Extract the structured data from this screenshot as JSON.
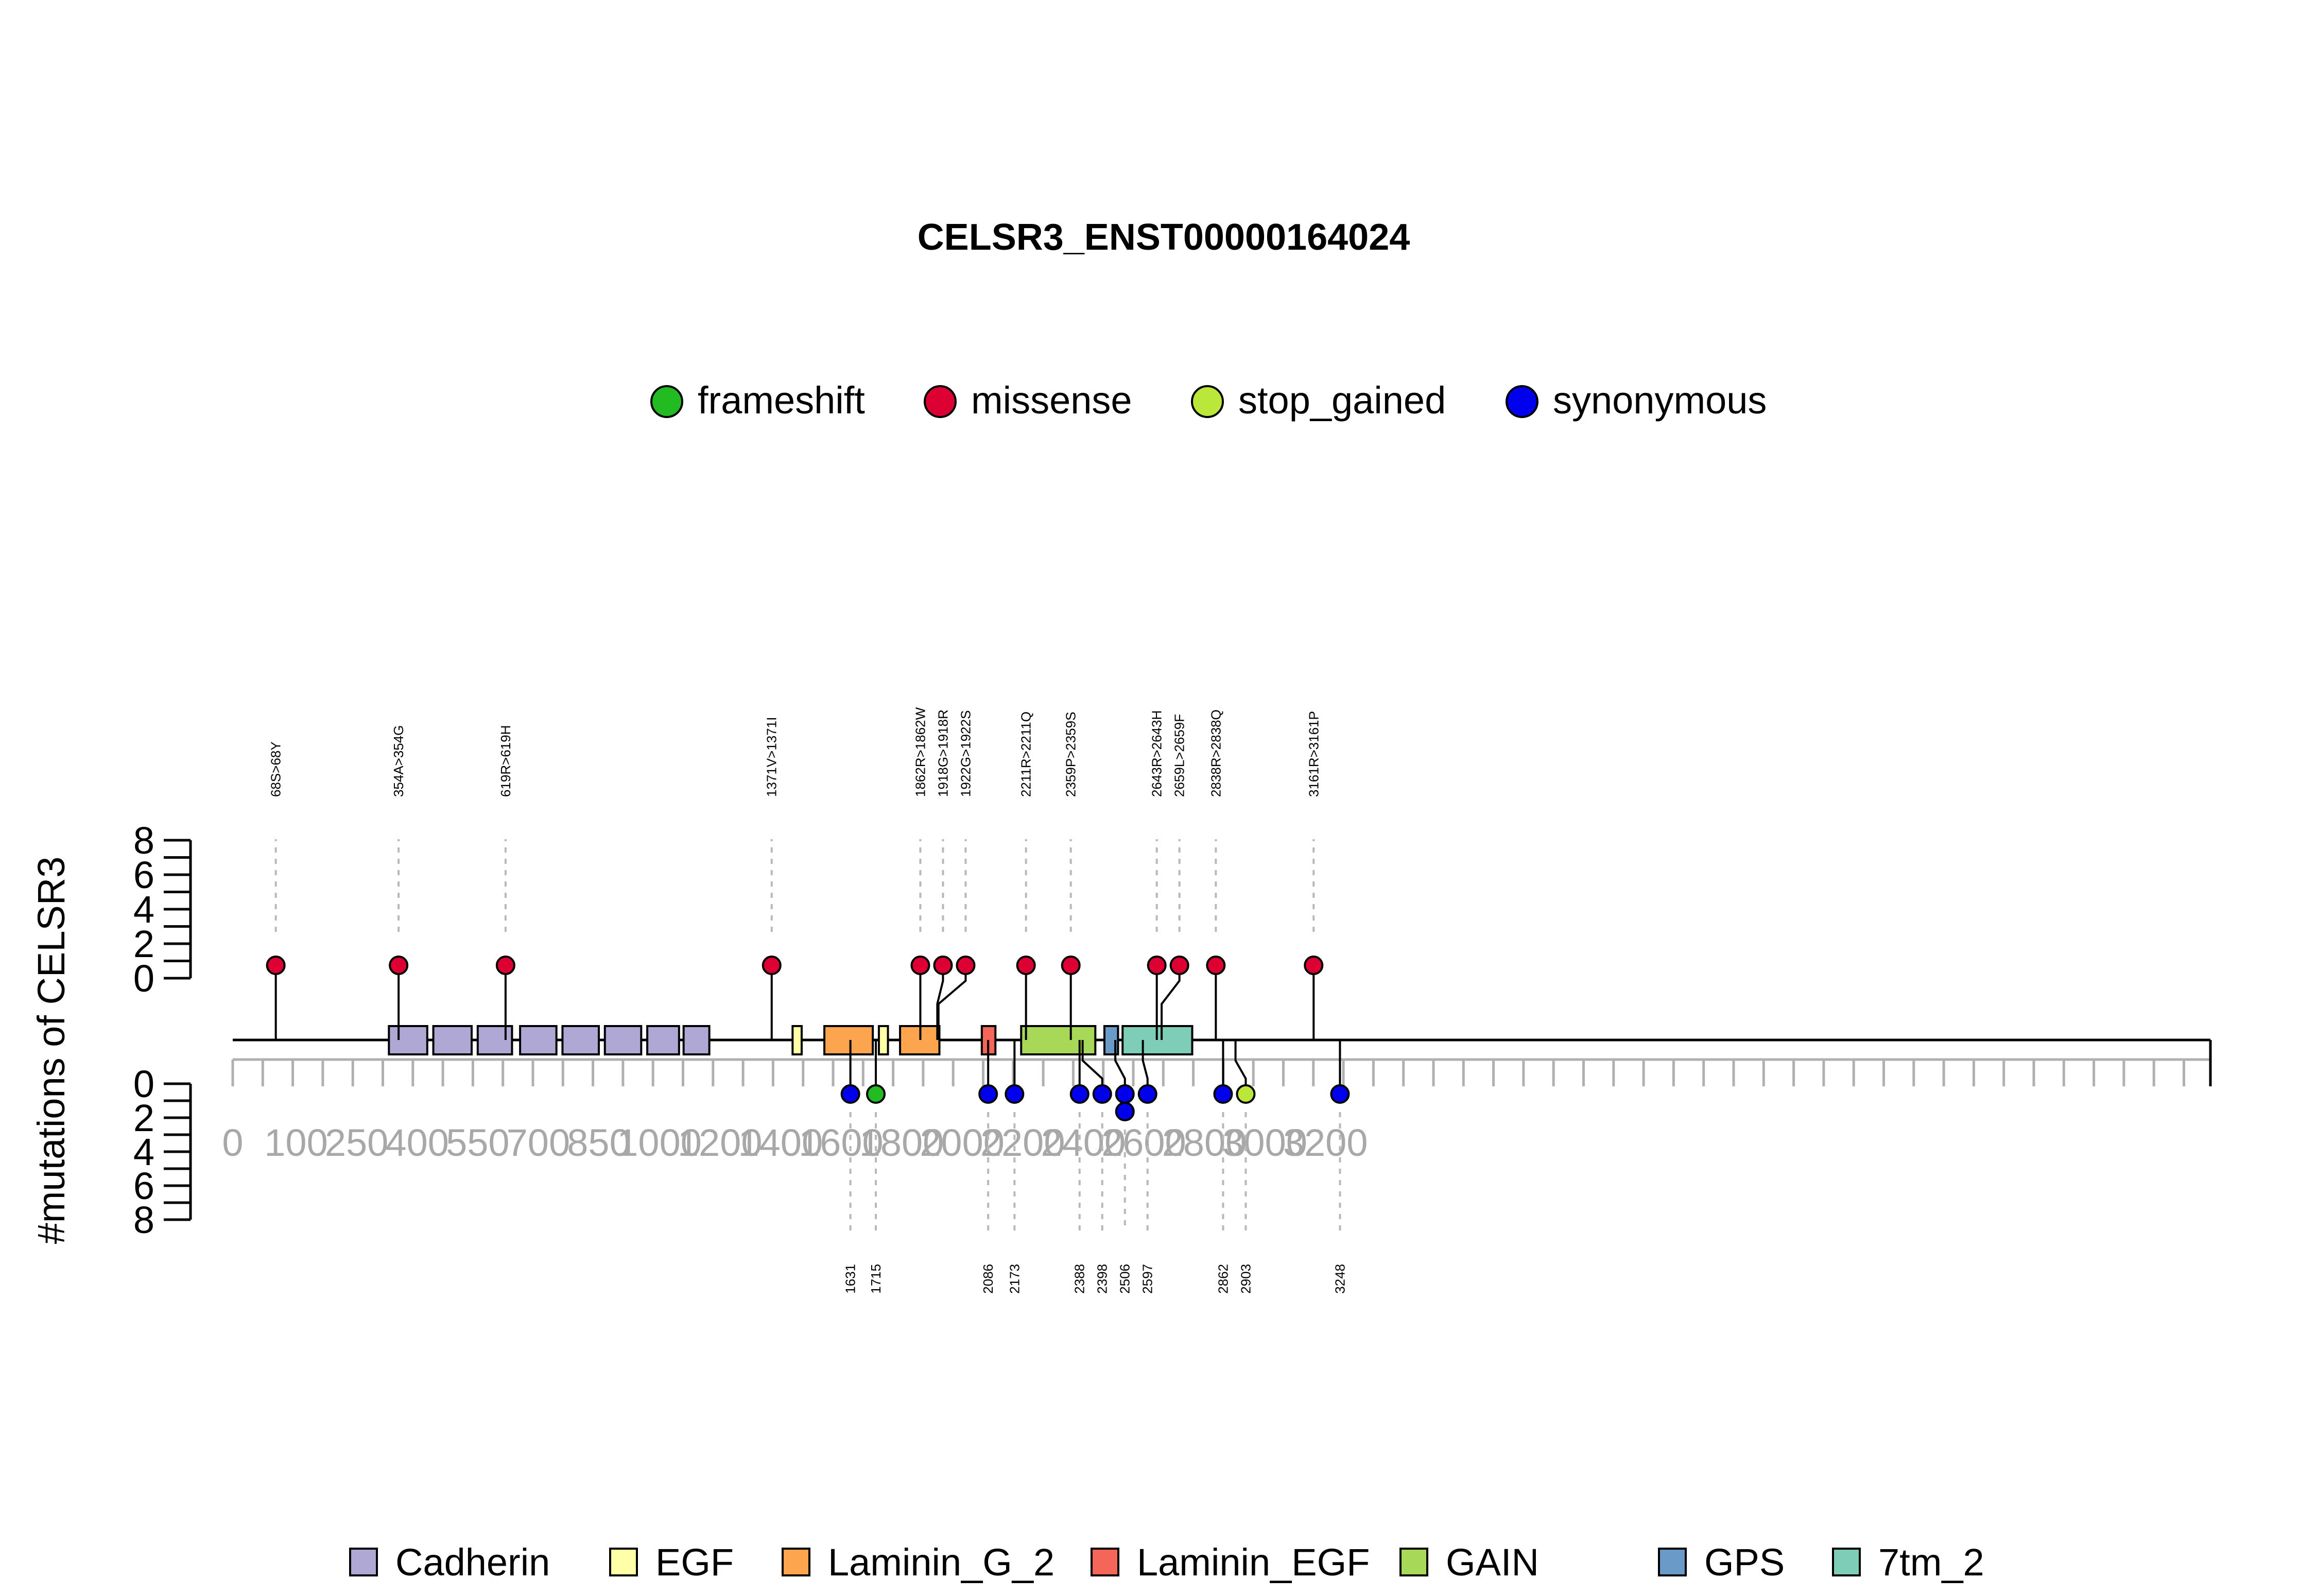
{
  "chart_data": {
    "type": "lollipop",
    "title": "CELSR3_ENST00000164024",
    "ylabel": "#mutations of CELSR3",
    "xticks": [
      0,
      100,
      250,
      400,
      550,
      700,
      850,
      1000,
      1200,
      1400,
      1600,
      1800,
      2000,
      2200,
      2400,
      2600,
      2800,
      3000,
      3200
    ],
    "yticks_top": [
      0,
      2,
      4,
      6,
      8
    ],
    "yticks_bottom": [
      0,
      2,
      4,
      6,
      8
    ],
    "mutation_legend": [
      {
        "label": "frameshift",
        "color": "#22bb22"
      },
      {
        "label": "missense",
        "color": "#dd0033"
      },
      {
        "label": "stop_gained",
        "color": "#bbe63a"
      },
      {
        "label": "synonymous",
        "color": "#0000ee"
      }
    ],
    "domain_legend": [
      {
        "label": "Cadherin",
        "color": "#b0a8d4"
      },
      {
        "label": "EGF",
        "color": "#ffffa8"
      },
      {
        "label": "Laminin_G_2",
        "color": "#fca54e"
      },
      {
        "label": "Laminin_EGF",
        "color": "#f4655a"
      },
      {
        "label": "GAIN",
        "color": "#a8d858"
      },
      {
        "label": "GPS",
        "color": "#6a9ac8"
      },
      {
        "label": "7tm_2",
        "color": "#7dcdb7"
      }
    ],
    "domains": [
      {
        "name": "Cadherin",
        "start": 330,
        "end": 425
      },
      {
        "name": "Cadherin",
        "start": 440,
        "end": 535
      },
      {
        "name": "Cadherin",
        "start": 550,
        "end": 635
      },
      {
        "name": "Cadherin",
        "start": 655,
        "end": 745
      },
      {
        "name": "Cadherin",
        "start": 760,
        "end": 850
      },
      {
        "name": "Cadherin",
        "start": 865,
        "end": 955
      },
      {
        "name": "Cadherin",
        "start": 970,
        "end": 1065
      },
      {
        "name": "Cadherin",
        "start": 1080,
        "end": 1165
      },
      {
        "name": "EGF",
        "start": 1440,
        "end": 1470
      },
      {
        "name": "Laminin_G_2",
        "start": 1545,
        "end": 1705
      },
      {
        "name": "EGF",
        "start": 1725,
        "end": 1755
      },
      {
        "name": "Laminin_G_2",
        "start": 1795,
        "end": 1925
      },
      {
        "name": "Laminin_EGF",
        "start": 2065,
        "end": 2110
      },
      {
        "name": "GAIN",
        "start": 2195,
        "end": 2440
      },
      {
        "name": "GPS",
        "start": 2470,
        "end": 2515
      },
      {
        "name": "7tm_2",
        "start": 2530,
        "end": 2760
      }
    ],
    "protein_length": 3250,
    "mutations_top": [
      {
        "pos": 68,
        "label": "68S>68Y",
        "type": "missense",
        "count": 1
      },
      {
        "pos": 354,
        "label": "354A>354G",
        "type": "missense",
        "count": 1
      },
      {
        "pos": 619,
        "label": "619R>619H",
        "type": "missense",
        "count": 1
      },
      {
        "pos": 1371,
        "label": "1371V>1371I",
        "type": "missense",
        "count": 1
      },
      {
        "pos": 1862,
        "label": "1862R>1862W",
        "type": "missense",
        "count": 1
      },
      {
        "pos": 1918,
        "label": "1918G>1918R",
        "type": "missense",
        "count": 1
      },
      {
        "pos": 1922,
        "label": "1922G>1922S",
        "type": "missense",
        "count": 1
      },
      {
        "pos": 2211,
        "label": "2211R>2211Q",
        "type": "missense",
        "count": 1
      },
      {
        "pos": 2359,
        "label": "2359P>2359S",
        "type": "missense",
        "count": 1
      },
      {
        "pos": 2643,
        "label": "2643R>2643H",
        "type": "missense",
        "count": 1
      },
      {
        "pos": 2659,
        "label": "2659L>2659F",
        "type": "missense",
        "count": 1
      },
      {
        "pos": 2838,
        "label": "2838R>2838Q",
        "type": "missense",
        "count": 1
      },
      {
        "pos": 3161,
        "label": "3161R>3161P",
        "type": "missense",
        "count": 1
      }
    ],
    "mutations_bottom": [
      {
        "pos": 1631,
        "label": "1631",
        "type": "synonymous",
        "count": 1
      },
      {
        "pos": 1715,
        "label": "1715",
        "type": "frameshift",
        "count": 1
      },
      {
        "pos": 2086,
        "label": "2086",
        "type": "synonymous",
        "count": 1
      },
      {
        "pos": 2173,
        "label": "2173",
        "type": "synonymous",
        "count": 1
      },
      {
        "pos": 2388,
        "label": "2388",
        "type": "synonymous",
        "count": 1
      },
      {
        "pos": 2398,
        "label": "2398",
        "type": "synonymous",
        "count": 1
      },
      {
        "pos": 2506,
        "label": "2506",
        "type": "synonymous",
        "count": 2
      },
      {
        "pos": 2597,
        "label": "2597",
        "type": "synonymous",
        "count": 1
      },
      {
        "pos": 2862,
        "label": "2862",
        "type": "synonymous",
        "count": 1
      },
      {
        "pos": 2903,
        "label": "2903",
        "type": "stop_gained",
        "count": 1
      },
      {
        "pos": 3248,
        "label": "3248",
        "type": "synonymous",
        "count": 1
      }
    ]
  }
}
